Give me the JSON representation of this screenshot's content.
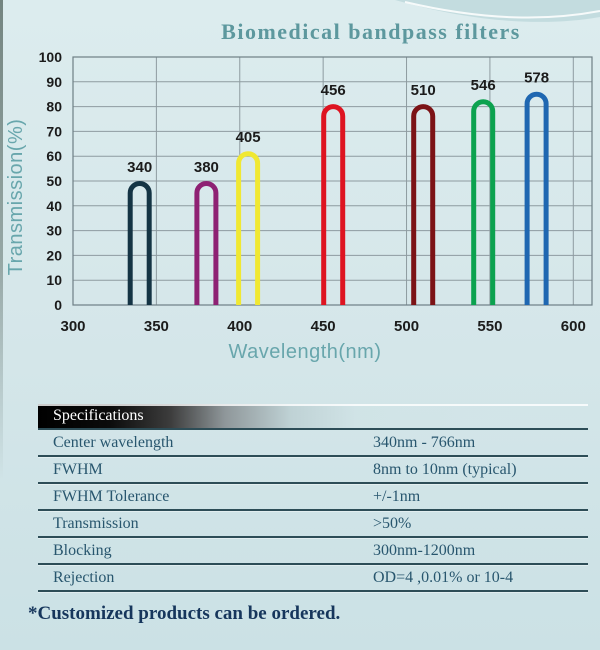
{
  "chart_data": {
    "type": "line",
    "title": "Biomedical bandpass filters",
    "xlabel": "Wavelength(nm)",
    "ylabel": "Transmission(%)",
    "xlim": [
      300,
      600
    ],
    "ylim": [
      0,
      100
    ],
    "x_ticks": [
      300,
      350,
      400,
      450,
      500,
      550,
      600
    ],
    "y_ticks": [
      0,
      10,
      20,
      30,
      40,
      50,
      60,
      70,
      80,
      90,
      100
    ],
    "grid": true,
    "legend": "none",
    "band_drawn_width_nm": 14,
    "series": [
      {
        "name": "340nm filter",
        "label": "340",
        "center_nm": 340,
        "peak_transmission_pct": 50,
        "color": "#143444"
      },
      {
        "name": "380nm filter",
        "label": "380",
        "center_nm": 380,
        "peak_transmission_pct": 50,
        "color": "#8e2173"
      },
      {
        "name": "405nm filter",
        "label": "405",
        "center_nm": 405,
        "peak_transmission_pct": 62,
        "color": "#f0e832"
      },
      {
        "name": "456nm filter",
        "label": "456",
        "center_nm": 456,
        "peak_transmission_pct": 81,
        "color": "#de1421"
      },
      {
        "name": "510nm filter",
        "label": "510",
        "center_nm": 510,
        "peak_transmission_pct": 81,
        "color": "#7c1316"
      },
      {
        "name": "546nm filter",
        "label": "546",
        "center_nm": 546,
        "peak_transmission_pct": 83,
        "color": "#0ca24f"
      },
      {
        "name": "578nm filter",
        "label": "578",
        "center_nm": 578,
        "peak_transmission_pct": 86,
        "color": "#1f67b1"
      }
    ]
  },
  "spec_table": {
    "header": "Specifications",
    "rows": [
      {
        "label": "Center wavelength",
        "value": "340nm - 766nm"
      },
      {
        "label": "FWHM",
        "value": "8nm to 10nm (typical)"
      },
      {
        "label": "FWHM Tolerance",
        "value": "+/-1nm"
      },
      {
        "label": "Transmission",
        "value": ">50%"
      },
      {
        "label": "Blocking",
        "value": "300nm-1200nm"
      },
      {
        "label": "Rejection",
        "value": "OD=4 ,0.01% or 10-4"
      }
    ]
  },
  "footnote": "*Customized products can be ordered.",
  "colors": {
    "title_text": "#5d989e",
    "axis_title_text": "#68a6ac",
    "tick_text": "#1b1b1b",
    "grid_line": "#8e9ba0",
    "plot_border": "#6e7f85",
    "table_text": "#28566e",
    "table_line": "#2d4d57",
    "header_text": "#ffffff",
    "footnote_text": "#16365c",
    "background_top": "#dcecee",
    "background_bottom": "#cbe1e5"
  }
}
